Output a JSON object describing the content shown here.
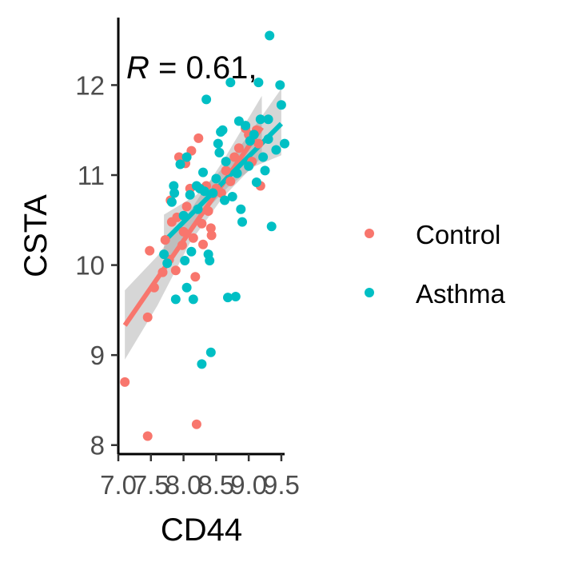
{
  "chart_data": {
    "type": "scatter",
    "xlabel": "CD44",
    "ylabel": "CSTA",
    "xlim": [
      7.0,
      9.55
    ],
    "ylim": [
      7.9,
      12.75
    ],
    "x_ticks": [
      7.0,
      7.5,
      8.0,
      8.5,
      9.0,
      9.5
    ],
    "x_tick_labels": [
      "7.0",
      "7.5",
      "8.0",
      "8.5",
      "9.0",
      "9.5"
    ],
    "y_ticks": [
      8,
      9,
      10,
      11,
      12
    ],
    "y_tick_labels": [
      "8",
      "9",
      "10",
      "11",
      "12"
    ],
    "annotation": {
      "italic": "R",
      "rest": " = 0.61,"
    },
    "grid": false,
    "legend_position": "right",
    "series": [
      {
        "name": "Control",
        "color": "#F8766D",
        "points": [
          [
            7.1,
            8.7
          ],
          [
            7.45,
            8.1
          ],
          [
            7.45,
            9.42
          ],
          [
            7.48,
            10.16
          ],
          [
            7.55,
            9.75
          ],
          [
            7.68,
            9.92
          ],
          [
            7.72,
            10.28
          ],
          [
            7.78,
            10.06
          ],
          [
            7.8,
            10.72
          ],
          [
            7.82,
            10.48
          ],
          [
            7.88,
            9.94
          ],
          [
            7.9,
            10.53
          ],
          [
            7.93,
            11.2
          ],
          [
            7.98,
            10.22
          ],
          [
            8.0,
            10.37
          ],
          [
            8.03,
            11.13
          ],
          [
            8.05,
            10.65
          ],
          [
            8.1,
            10.85
          ],
          [
            8.12,
            11.27
          ],
          [
            8.15,
            10.3
          ],
          [
            8.18,
            9.87
          ],
          [
            8.2,
            8.23
          ],
          [
            8.23,
            11.41
          ],
          [
            8.28,
            10.46
          ],
          [
            8.3,
            10.23
          ],
          [
            8.35,
            10.88
          ],
          [
            8.38,
            10.6
          ],
          [
            8.42,
            10.41
          ],
          [
            8.43,
            10.33
          ],
          [
            8.5,
            10.85
          ],
          [
            8.58,
            10.8
          ],
          [
            8.65,
            11.05
          ],
          [
            8.72,
            10.93
          ],
          [
            8.78,
            11.2
          ],
          [
            8.85,
            11.3
          ],
          [
            8.95,
            11.52
          ],
          [
            9.0,
            11.45
          ],
          [
            9.05,
            11.15
          ],
          [
            9.12,
            11.5
          ],
          [
            9.15,
            11.35
          ],
          [
            9.18,
            10.88
          ]
        ],
        "fit": {
          "x": [
            7.1,
            9.2
          ],
          "y": [
            9.33,
            11.53
          ]
        },
        "band": {
          "x": [
            7.1,
            7.6,
            8.1,
            8.6,
            9.2
          ],
          "lower": [
            8.95,
            9.55,
            10.25,
            10.75,
            11.2
          ],
          "upper": [
            9.72,
            10.1,
            10.6,
            11.15,
            11.88
          ]
        }
      },
      {
        "name": "Asthma",
        "color": "#00BFC4",
        "points": [
          [
            7.7,
            10.12
          ],
          [
            7.75,
            10.02
          ],
          [
            7.82,
            10.7
          ],
          [
            7.85,
            10.88
          ],
          [
            7.86,
            10.8
          ],
          [
            7.88,
            9.62
          ],
          [
            7.95,
            11.12
          ],
          [
            8.0,
            10.55
          ],
          [
            8.02,
            10.05
          ],
          [
            8.05,
            9.75
          ],
          [
            8.05,
            11.2
          ],
          [
            8.1,
            10.78
          ],
          [
            8.12,
            10.15
          ],
          [
            8.15,
            9.62
          ],
          [
            8.2,
            10.88
          ],
          [
            8.22,
            10.62
          ],
          [
            8.25,
            10.85
          ],
          [
            8.28,
            8.9
          ],
          [
            8.3,
            11.03
          ],
          [
            8.32,
            10.82
          ],
          [
            8.35,
            11.84
          ],
          [
            8.38,
            10.12
          ],
          [
            8.4,
            10.05
          ],
          [
            8.42,
            9.03
          ],
          [
            8.45,
            10.8
          ],
          [
            8.5,
            10.96
          ],
          [
            8.53,
            11.35
          ],
          [
            8.55,
            11.25
          ],
          [
            8.57,
            11.48
          ],
          [
            8.6,
            11.5
          ],
          [
            8.63,
            10.72
          ],
          [
            8.65,
            11.15
          ],
          [
            8.68,
            9.64
          ],
          [
            8.72,
            12.03
          ],
          [
            8.75,
            10.76
          ],
          [
            8.8,
            9.65
          ],
          [
            8.82,
            11.02
          ],
          [
            8.85,
            11.6
          ],
          [
            8.88,
            10.62
          ],
          [
            8.9,
            10.48
          ],
          [
            8.95,
            11.55
          ],
          [
            9.0,
            11.1
          ],
          [
            9.02,
            11.38
          ],
          [
            9.08,
            11.45
          ],
          [
            9.12,
            10.92
          ],
          [
            9.15,
            12.03
          ],
          [
            9.18,
            11.62
          ],
          [
            9.22,
            11.2
          ],
          [
            9.25,
            11.05
          ],
          [
            9.3,
            11.4
          ],
          [
            9.32,
            12.55
          ],
          [
            9.35,
            10.43
          ],
          [
            9.42,
            11.28
          ],
          [
            9.48,
            12.0
          ],
          [
            9.5,
            11.78
          ],
          [
            9.55,
            11.35
          ],
          [
            9.3,
            11.62
          ]
        ],
        "fit": {
          "x": [
            7.7,
            9.5
          ],
          "y": [
            10.26,
            11.57
          ]
        },
        "band": {
          "x": [
            7.7,
            8.2,
            8.7,
            9.1,
            9.5
          ],
          "lower": [
            9.98,
            10.5,
            10.88,
            11.1,
            11.22
          ],
          "upper": [
            10.56,
            10.78,
            11.15,
            11.55,
            11.96
          ]
        }
      }
    ]
  }
}
